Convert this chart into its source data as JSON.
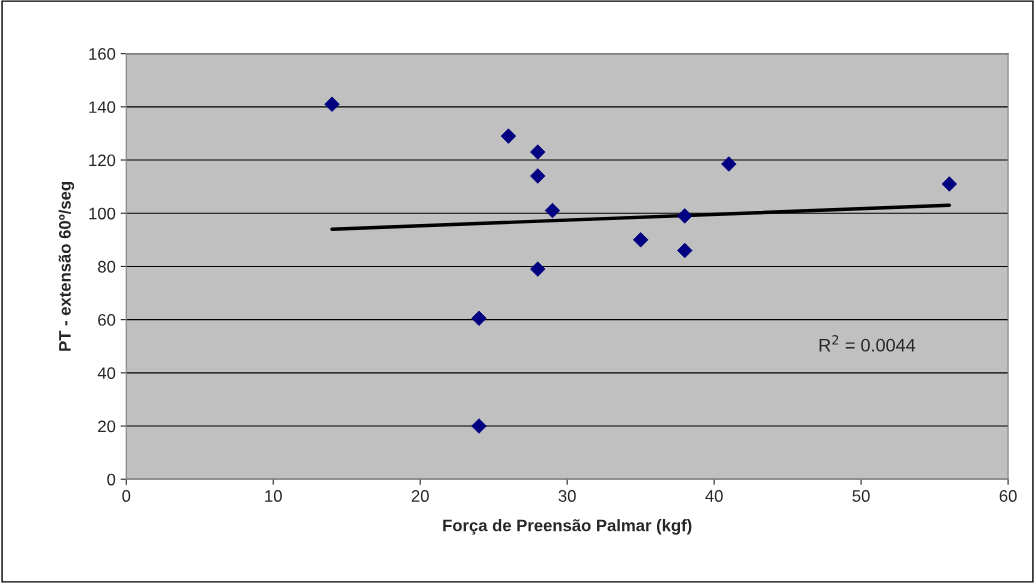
{
  "chart_data": {
    "type": "scatter",
    "xlabel": "Força de Preensão Palmar (kgf)",
    "ylabel": "PT - extensão 60º/seg",
    "xlim": [
      0,
      60
    ],
    "xticks": [
      0,
      10,
      20,
      30,
      40,
      50,
      60
    ],
    "ylim": [
      0,
      160
    ],
    "yticks": [
      0,
      20,
      40,
      60,
      80,
      100,
      120,
      140,
      160
    ],
    "grid": "y",
    "legend": false,
    "series": [
      {
        "marker": "diamond",
        "color": "#000080",
        "x": [
          14,
          26,
          28,
          28,
          29,
          24,
          24,
          28,
          35,
          38,
          38,
          41,
          56
        ],
        "values": [
          141,
          129,
          123,
          114,
          101,
          60.5,
          20,
          79,
          90,
          99,
          86,
          118.5,
          111
        ]
      },
      {
        "type": "line",
        "color": "#000000",
        "x": [
          14,
          56
        ],
        "values": [
          94,
          103
        ]
      }
    ],
    "annotations": [
      "R$^{2}$ = 0.0044"
    ]
  }
}
